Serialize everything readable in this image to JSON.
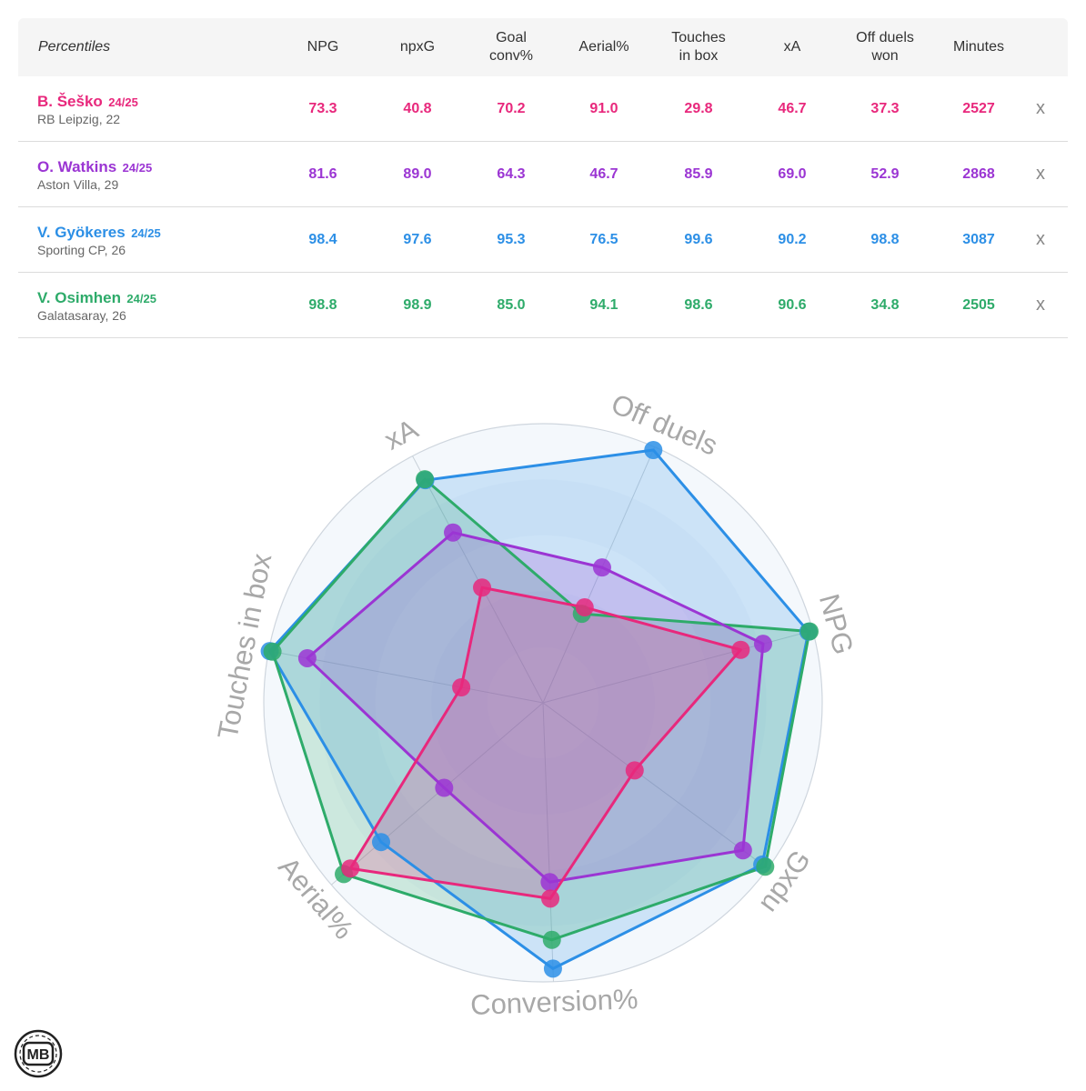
{
  "table": {
    "first_header": "Percentiles",
    "headers": [
      [
        "NPG"
      ],
      [
        "npxG"
      ],
      [
        "Goal",
        "conv%"
      ],
      [
        "Aerial%"
      ],
      [
        "Touches",
        "in box"
      ],
      [
        "xA"
      ],
      [
        "Off duels",
        "won"
      ],
      [
        "Minutes"
      ]
    ],
    "close_symbol": "x"
  },
  "players": [
    {
      "name": "B. Šeško",
      "season": "24/25",
      "club": "RB Leipzig, 22",
      "color": "#e8287c",
      "values": [
        "73.3",
        "40.8",
        "70.2",
        "91.0",
        "29.8",
        "46.7",
        "37.3",
        "2527"
      ]
    },
    {
      "name": "O. Watkins",
      "season": "24/25",
      "club": "Aston Villa, 29",
      "color": "#9b35d3",
      "values": [
        "81.6",
        "89.0",
        "64.3",
        "46.7",
        "85.9",
        "69.0",
        "52.9",
        "2868"
      ]
    },
    {
      "name": "V. Gyökeres",
      "season": "24/25",
      "club": "Sporting CP, 26",
      "color": "#2c8fe6",
      "values": [
        "98.4",
        "97.6",
        "95.3",
        "76.5",
        "99.6",
        "90.2",
        "98.8",
        "3087"
      ]
    },
    {
      "name": "V. Osimhen",
      "season": "24/25",
      "club": "Galatasaray, 26",
      "color": "#2eab6a",
      "values": [
        "98.8",
        "98.9",
        "85.0",
        "94.1",
        "98.6",
        "90.6",
        "34.8",
        "2505"
      ]
    }
  ],
  "chart_data": {
    "type": "radar",
    "axes": [
      "NPG",
      "npxG",
      "Conversion%",
      "Aerial%",
      "Touches in box",
      "xA",
      "Off duels"
    ],
    "range": [
      0,
      100
    ],
    "series": [
      {
        "name": "B. Šeško",
        "color": "#e8287c",
        "values": [
          73.3,
          40.8,
          70.2,
          91.0,
          29.8,
          46.7,
          37.3
        ]
      },
      {
        "name": "O. Watkins",
        "color": "#9b35d3",
        "values": [
          81.6,
          89.0,
          64.3,
          46.7,
          85.9,
          69.0,
          52.9
        ]
      },
      {
        "name": "V. Gyökeres",
        "color": "#2c8fe6",
        "values": [
          98.4,
          97.6,
          95.3,
          76.5,
          99.6,
          90.2,
          98.8
        ]
      },
      {
        "name": "V. Osimhen",
        "color": "#2eab6a",
        "values": [
          98.8,
          98.9,
          85.0,
          94.1,
          98.6,
          90.6,
          34.8
        ]
      }
    ]
  },
  "logo": {
    "text": "MB"
  }
}
